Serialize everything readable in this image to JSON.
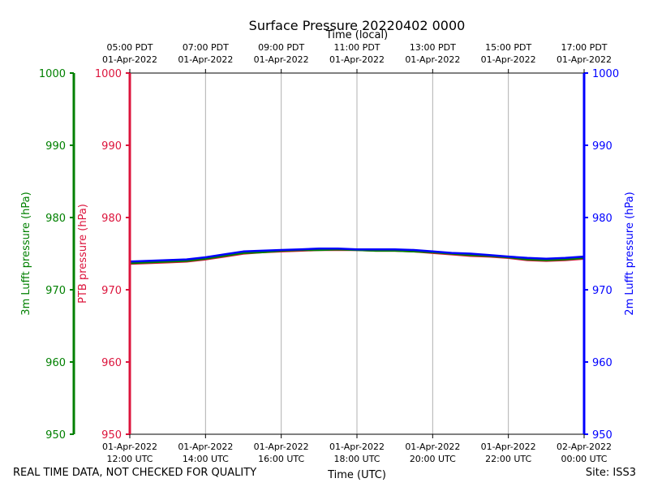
{
  "footer": {
    "disclaimer": "REAL TIME DATA, NOT CHECKED FOR QUALITY",
    "site": "Site: ISS3"
  },
  "colors": {
    "ptb": "#dc143c",
    "lufft3m": "#008000",
    "lufft2m": "#0000ff",
    "grid": "#b0b0b0",
    "axis": "#000000"
  },
  "chart_data": {
    "type": "line",
    "title": "Surface Pressure 20220402 0000",
    "xlabel": "Time (UTC)",
    "top_xlabel": "Time (local)",
    "x_unit": "hours since 2022-04-01 12:00 UTC",
    "xlim": [
      0,
      12
    ],
    "ylim": [
      950,
      1000
    ],
    "yticks": [
      950,
      960,
      970,
      980,
      990,
      1000
    ],
    "axes": [
      {
        "id": "left_outer",
        "label": "3m Lufft pressure (hPa)",
        "color": "#008000"
      },
      {
        "id": "left_inner",
        "label": "PTB pressure (hPa)",
        "color": "#dc143c"
      },
      {
        "id": "right",
        "label": "2m Lufft pressure (hPa)",
        "color": "#0000ff"
      }
    ],
    "bottom_ticks": [
      {
        "x": 0,
        "line1": "01-Apr-2022",
        "line2": "12:00 UTC"
      },
      {
        "x": 2,
        "line1": "01-Apr-2022",
        "line2": "14:00 UTC"
      },
      {
        "x": 4,
        "line1": "01-Apr-2022",
        "line2": "16:00 UTC"
      },
      {
        "x": 6,
        "line1": "01-Apr-2022",
        "line2": "18:00 UTC"
      },
      {
        "x": 8,
        "line1": "01-Apr-2022",
        "line2": "20:00 UTC"
      },
      {
        "x": 10,
        "line1": "01-Apr-2022",
        "line2": "22:00 UTC"
      },
      {
        "x": 12,
        "line1": "02-Apr-2022",
        "line2": "00:00 UTC"
      }
    ],
    "top_ticks": [
      {
        "x": 0,
        "line1": "05:00 PDT",
        "line2": "01-Apr-2022"
      },
      {
        "x": 2,
        "line1": "07:00 PDT",
        "line2": "01-Apr-2022"
      },
      {
        "x": 4,
        "line1": "09:00 PDT",
        "line2": "01-Apr-2022"
      },
      {
        "x": 6,
        "line1": "11:00 PDT",
        "line2": "01-Apr-2022"
      },
      {
        "x": 8,
        "line1": "13:00 PDT",
        "line2": "01-Apr-2022"
      },
      {
        "x": 10,
        "line1": "15:00 PDT",
        "line2": "01-Apr-2022"
      },
      {
        "x": 12,
        "line1": "17:00 PDT",
        "line2": "01-Apr-2022"
      }
    ],
    "series": [
      {
        "name": "PTB pressure",
        "color": "#dc143c",
        "x": [
          0,
          0.5,
          1,
          1.5,
          2,
          2.5,
          3,
          3.5,
          4,
          4.5,
          5,
          5.5,
          6,
          6.5,
          7,
          7.5,
          8,
          8.5,
          9,
          9.5,
          10,
          10.5,
          11,
          11.5,
          12
        ],
        "values": [
          973.6,
          973.7,
          973.8,
          973.9,
          974.2,
          974.6,
          975.0,
          975.2,
          975.3,
          975.4,
          975.5,
          975.5,
          975.5,
          975.4,
          975.4,
          975.3,
          975.1,
          974.9,
          974.7,
          974.6,
          974.4,
          974.1,
          974.0,
          974.1,
          974.3
        ]
      },
      {
        "name": "3m Lufft pressure",
        "color": "#008000",
        "x": [
          0,
          0.5,
          1,
          1.5,
          2,
          2.5,
          3,
          3.5,
          4,
          4.5,
          5,
          5.5,
          6,
          6.5,
          7,
          7.5,
          8,
          8.5,
          9,
          9.5,
          10,
          10.5,
          11,
          11.5,
          12
        ],
        "values": [
          973.7,
          973.8,
          973.9,
          974.0,
          974.3,
          974.7,
          975.1,
          975.2,
          975.4,
          975.5,
          975.5,
          975.6,
          975.5,
          975.4,
          975.4,
          975.3,
          975.2,
          975.0,
          974.8,
          974.7,
          974.5,
          974.2,
          974.1,
          974.2,
          974.4
        ]
      },
      {
        "name": "2m Lufft pressure",
        "color": "#0000ff",
        "x": [
          0,
          0.5,
          1,
          1.5,
          2,
          2.5,
          3,
          3.5,
          4,
          4.5,
          5,
          5.5,
          6,
          6.5,
          7,
          7.5,
          8,
          8.5,
          9,
          9.5,
          10,
          10.5,
          11,
          11.5,
          12
        ],
        "values": [
          973.9,
          974.0,
          974.1,
          974.2,
          974.5,
          974.9,
          975.3,
          975.4,
          975.5,
          975.6,
          975.7,
          975.7,
          975.6,
          975.6,
          975.6,
          975.5,
          975.3,
          975.1,
          975.0,
          974.8,
          974.6,
          974.4,
          974.3,
          974.4,
          974.6
        ]
      }
    ]
  }
}
